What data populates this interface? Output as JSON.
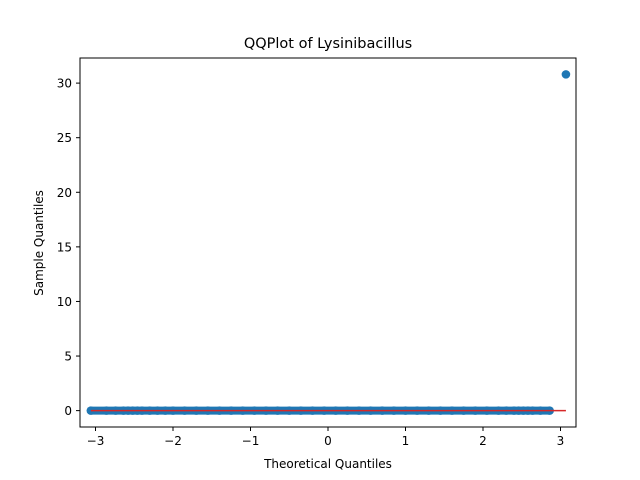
{
  "chart_data": {
    "type": "scatter",
    "title": "QQPlot of Lysinibacillus",
    "xlabel": "Theoretical Quantiles",
    "ylabel": "Sample Quantiles",
    "xlim": [
      -3.2,
      3.2
    ],
    "ylim": [
      -1.5,
      32.3
    ],
    "x_ticks": [
      -3,
      -2,
      -1,
      0,
      1,
      2,
      3
    ],
    "x_tick_labels": [
      "−3",
      "−2",
      "−1",
      "0",
      "1",
      "2",
      "3"
    ],
    "y_ticks": [
      0,
      5,
      10,
      15,
      20,
      25,
      30
    ],
    "y_tick_labels": [
      "0",
      "5",
      "10",
      "15",
      "20",
      "25",
      "30"
    ],
    "grid": false,
    "legend": "none",
    "series": [
      {
        "marker_color": "#1f77b4",
        "points_x": [
          -3.06,
          -2.86,
          -2.74,
          -2.64,
          -2.58,
          -2.52,
          -2.46,
          -2.4,
          -2.3,
          -2.2,
          -2.1,
          -2.0,
          -1.85,
          -1.7,
          -1.55,
          -1.4,
          -1.25,
          -1.1,
          -0.95,
          -0.8,
          -0.65,
          -0.5,
          -0.35,
          -0.2,
          -0.05,
          0.1,
          0.25,
          0.4,
          0.55,
          0.7,
          0.85,
          1.0,
          1.15,
          1.3,
          1.45,
          1.6,
          1.75,
          1.9,
          2.05,
          2.2,
          2.3,
          2.4,
          2.46,
          2.52,
          2.58,
          2.64,
          2.74,
          2.86,
          3.07
        ],
        "points_y": [
          0.0,
          0.0,
          0.0,
          0.0,
          0.0,
          0.0,
          0.0,
          0.0,
          0.0,
          0.0,
          0.0,
          0.0,
          0.0,
          0.0,
          0.0,
          0.0,
          0.0,
          0.0,
          0.0,
          0.0,
          0.0,
          0.0,
          0.0,
          0.0,
          0.0,
          0.0,
          0.0,
          0.0,
          0.0,
          0.0,
          0.0,
          0.0,
          0.0,
          0.0,
          0.0,
          0.0,
          0.0,
          0.0,
          0.0,
          0.0,
          0.0,
          0.0,
          0.0,
          0.0,
          0.0,
          0.0,
          0.0,
          0.0,
          30.8
        ]
      }
    ],
    "reference_line": {
      "color": "#d62728",
      "x": [
        -3.06,
        3.07
      ],
      "y": [
        0.0,
        0.0
      ]
    }
  }
}
